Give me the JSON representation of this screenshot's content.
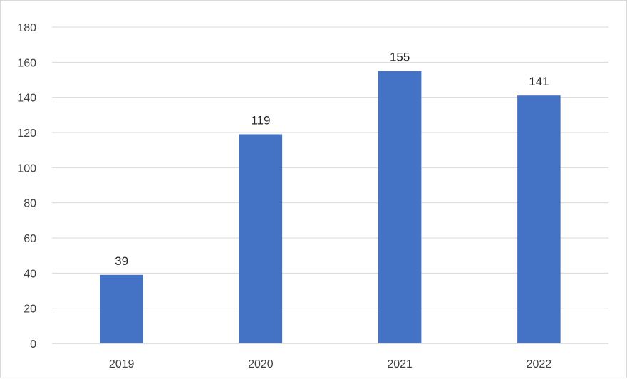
{
  "chart_data": {
    "type": "bar",
    "categories": [
      "2019",
      "2020",
      "2021",
      "2022"
    ],
    "values": [
      39,
      119,
      155,
      141
    ],
    "data_labels": [
      "39",
      "119",
      "155",
      "141"
    ],
    "title": "",
    "xlabel": "",
    "ylabel": "",
    "ylim": [
      0,
      180
    ],
    "yticks": [
      "0",
      "20",
      "40",
      "60",
      "80",
      "100",
      "120",
      "140",
      "160",
      "180"
    ],
    "grid": true,
    "legend": "none",
    "bar_color": "#4472c4"
  }
}
